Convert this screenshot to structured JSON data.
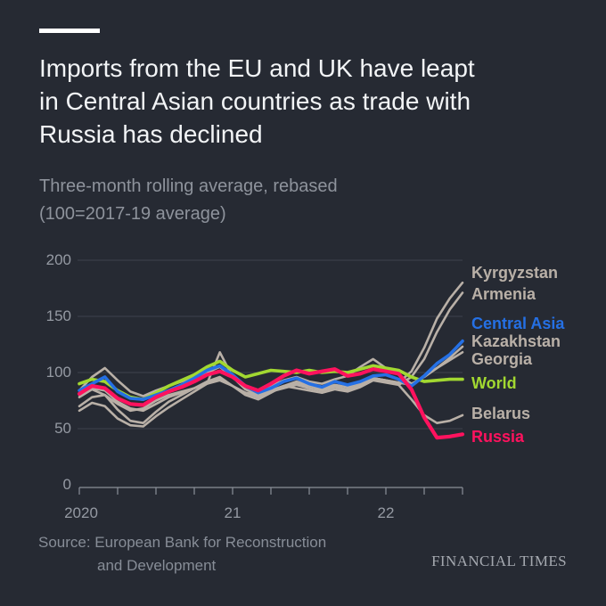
{
  "header": {
    "title_lines": [
      "Imports from the EU and UK have leapt",
      "in Central Asian countries as trade with",
      "Russia has declined"
    ],
    "subtitle_lines": [
      "Three-month rolling average, rebased",
      "(100=2017-19 average)"
    ]
  },
  "chart_data": {
    "type": "line",
    "title": "Imports from the EU and UK, three-month rolling average, rebased (100=2017-19 average)",
    "ylim": [
      0,
      200
    ],
    "grid": true,
    "legend_position": "right",
    "y_ticks": [
      "0",
      "50",
      "100",
      "150",
      "200"
    ],
    "x_tick_labels": [
      "2020",
      "21",
      "22"
    ],
    "x_months": [
      "2020-01",
      "2020-02",
      "2020-03",
      "2020-04",
      "2020-05",
      "2020-06",
      "2020-07",
      "2020-08",
      "2020-09",
      "2020-10",
      "2020-11",
      "2020-12",
      "2021-01",
      "2021-02",
      "2021-03",
      "2021-04",
      "2021-05",
      "2021-06",
      "2021-07",
      "2021-08",
      "2021-09",
      "2021-10",
      "2021-11",
      "2021-12",
      "2022-01",
      "2022-02",
      "2022-03",
      "2022-04",
      "2022-05",
      "2022-06",
      "2022-07"
    ],
    "series": [
      {
        "name": "Kyrgyzstan",
        "color": "#b9b0a7",
        "line_width": 2.6,
        "values": [
          78,
          85,
          80,
          67,
          57,
          55,
          65,
          74,
          80,
          86,
          92,
          96,
          88,
          80,
          76,
          82,
          88,
          92,
          89,
          85,
          88,
          84,
          89,
          95,
          93,
          91,
          101,
          122,
          148,
          166,
          180
        ]
      },
      {
        "name": "Armenia",
        "color": "#b9b0a7",
        "line_width": 2.6,
        "values": [
          66,
          73,
          70,
          59,
          53,
          52,
          61,
          69,
          76,
          83,
          90,
          118,
          96,
          85,
          80,
          84,
          88,
          86,
          84,
          82,
          85,
          83,
          87,
          93,
          91,
          89,
          96,
          112,
          136,
          156,
          171
        ]
      },
      {
        "name": "Kazakhstan",
        "color": "#b9b0a7",
        "line_width": 2.6,
        "values": [
          84,
          96,
          104,
          93,
          83,
          79,
          84,
          88,
          92,
          96,
          100,
          105,
          96,
          88,
          84,
          88,
          93,
          96,
          92,
          90,
          94,
          97,
          105,
          112,
          104,
          98,
          90,
          96,
          104,
          113,
          123
        ]
      },
      {
        "name": "Georgia",
        "color": "#b9b0a7",
        "line_width": 2.6,
        "values": [
          80,
          86,
          84,
          74,
          68,
          66,
          72,
          78,
          82,
          86,
          91,
          95,
          88,
          82,
          78,
          83,
          86,
          89,
          86,
          84,
          87,
          85,
          89,
          95,
          93,
          91,
          89,
          97,
          104,
          111,
          118
        ]
      },
      {
        "name": "Belarus",
        "color": "#b9b0a7",
        "line_width": 2.6,
        "values": [
          70,
          78,
          80,
          72,
          66,
          68,
          75,
          80,
          83,
          86,
          90,
          93,
          88,
          82,
          80,
          84,
          88,
          90,
          88,
          86,
          89,
          87,
          91,
          95,
          93,
          89,
          76,
          62,
          55,
          57,
          62
        ]
      },
      {
        "name": "World",
        "color": "#a2d831",
        "line_width": 3.6,
        "values": [
          90,
          94,
          92,
          84,
          78,
          76,
          82,
          88,
          93,
          98,
          105,
          110,
          102,
          96,
          99,
          102,
          101,
          100,
          102,
          100,
          101,
          100,
          103,
          106,
          104,
          102,
          96,
          92,
          93,
          94,
          94
        ]
      },
      {
        "name": "Central Asia",
        "color": "#2570e4",
        "line_width": 3.6,
        "values": [
          84,
          90,
          96,
          83,
          77,
          76,
          80,
          84,
          89,
          95,
          102,
          106,
          98,
          88,
          82,
          86,
          92,
          95,
          90,
          87,
          92,
          89,
          92,
          97,
          98,
          94,
          88,
          97,
          108,
          116,
          128
        ]
      },
      {
        "name": "Russia",
        "color": "#ff125e",
        "line_width": 4.2,
        "values": [
          81,
          88,
          86,
          77,
          72,
          71,
          78,
          83,
          87,
          92,
          98,
          101,
          96,
          88,
          84,
          90,
          97,
          102,
          99,
          101,
          103,
          97,
          99,
          103,
          101,
          99,
          85,
          60,
          42,
          43,
          45
        ]
      }
    ],
    "colors": {
      "background": "#262a33",
      "gridline": "#3d434e",
      "axis_line": "#8b9099",
      "axis_text": "#959aa3"
    }
  },
  "footer": {
    "source_lines": [
      "Source: European Bank for Reconstruction",
      "and Development"
    ],
    "brand": "FINANCIAL TIMES"
  }
}
